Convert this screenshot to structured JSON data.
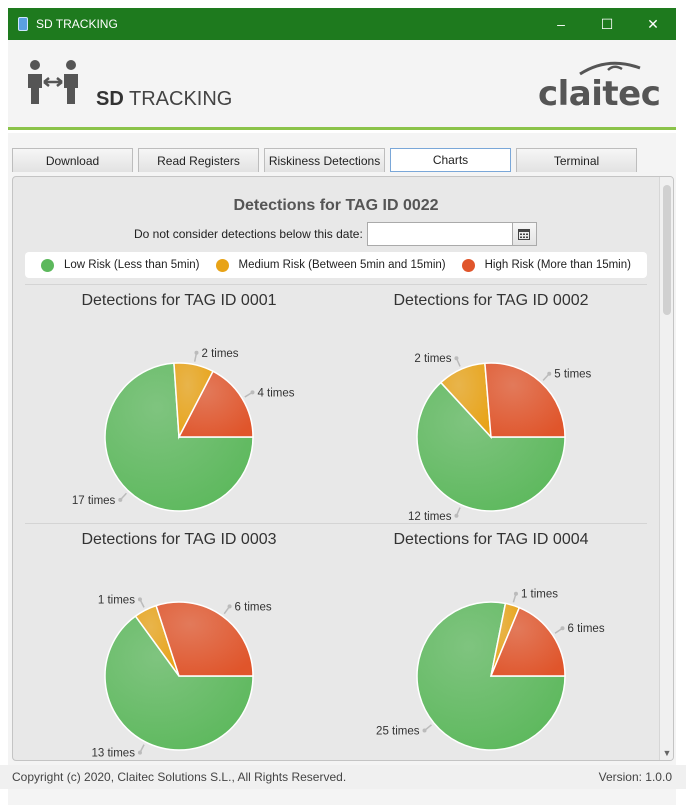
{
  "window": {
    "title": "SD TRACKING",
    "minimize": "–",
    "maximize": "☐",
    "close": "✕"
  },
  "header": {
    "app_name_bold": "SD",
    "app_name_rest": "TRACKING",
    "brand": "claitec"
  },
  "tabs": [
    {
      "label": "Download",
      "active": false
    },
    {
      "label": "Read Registers",
      "active": false
    },
    {
      "label": "Riskiness Detections",
      "active": false
    },
    {
      "label": "Charts",
      "active": true
    },
    {
      "label": "Terminal",
      "active": false
    }
  ],
  "charts_page": {
    "title": "Detections for TAG ID 0022",
    "date_filter": {
      "label": "Do not consider detections below this date:",
      "value": "",
      "button_icon": "calendar-icon"
    }
  },
  "legend": [
    {
      "label": "Low Risk (Less than 5min)",
      "color": "#5cb85c"
    },
    {
      "label": "Medium Risk (Between 5min and 15min)",
      "color": "#e8a317"
    },
    {
      "label": "High Risk (More than 15min)",
      "color": "#e0552b"
    }
  ],
  "chart_data": [
    {
      "type": "pie",
      "title": "Detections for TAG ID 0001",
      "categories": [
        "Low Risk (Less than 5min)",
        "Medium Risk (Between 5min and 15min)",
        "High Risk (More than 15min)"
      ],
      "values": [
        17,
        2,
        4
      ],
      "labels": [
        "17 times",
        "2 times",
        "4 times"
      ]
    },
    {
      "type": "pie",
      "title": "Detections for TAG ID 0002",
      "categories": [
        "Low Risk (Less than 5min)",
        "Medium Risk (Between 5min and 15min)",
        "High Risk (More than 15min)"
      ],
      "values": [
        12,
        2,
        5
      ],
      "labels": [
        "12 times",
        "2 times",
        "5 times"
      ]
    },
    {
      "type": "pie",
      "title": "Detections for TAG ID 0003",
      "categories": [
        "Low Risk (Less than 5min)",
        "Medium Risk (Between 5min and 15min)",
        "High Risk (More than 15min)"
      ],
      "values": [
        13,
        1,
        6
      ],
      "labels": [
        "13 times",
        "1 times",
        "6 times"
      ]
    },
    {
      "type": "pie",
      "title": "Detections for TAG ID 0004",
      "categories": [
        "Low Risk (Less than 5min)",
        "Medium Risk (Between 5min and 15min)",
        "High Risk (More than 15min)"
      ],
      "values": [
        25,
        1,
        6
      ],
      "labels": [
        "25 times",
        "1 times",
        "6 times"
      ]
    }
  ],
  "footer": {
    "copyright": "Copyright (c) 2020, Claitec Solutions S.L., All Rights Reserved.",
    "version": "Version: 1.0.0"
  }
}
